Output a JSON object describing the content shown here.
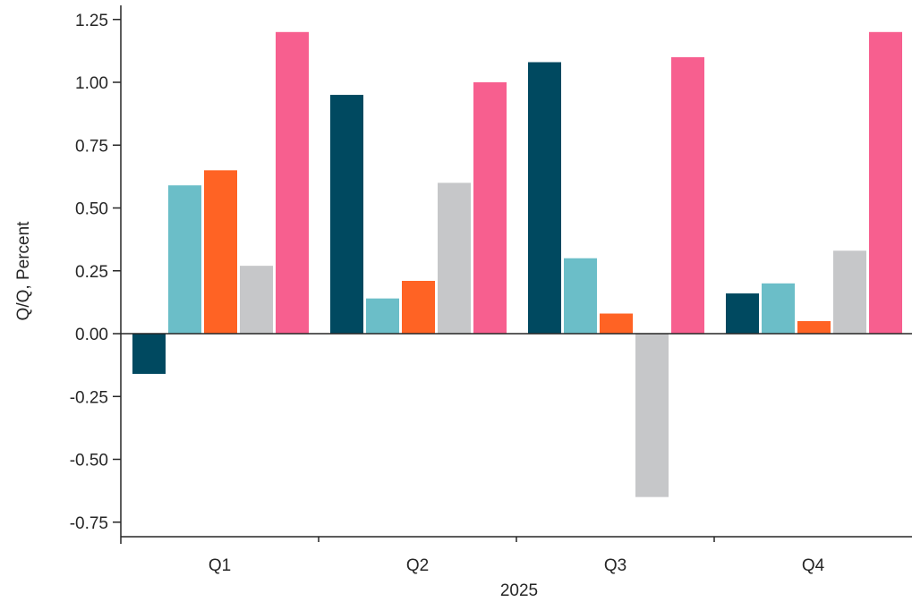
{
  "chart_data": {
    "type": "bar",
    "xlabel": "2025",
    "ylabel": "Q/Q, Percent",
    "categories": [
      "Q1",
      "Q2",
      "Q3",
      "Q4"
    ],
    "ylim": [
      -0.8,
      1.3
    ],
    "yticks": [
      1.25,
      1.0,
      0.75,
      0.5,
      0.25,
      0.0,
      -0.25,
      -0.5,
      -0.75
    ],
    "ytick_labels": [
      "1.25",
      "1.00",
      "0.75",
      "0.50",
      "0.25",
      "0.00",
      "-0.25",
      "-0.50",
      "-0.75"
    ],
    "grid": false,
    "legend": "none",
    "series": [
      {
        "color": "#004960",
        "values": [
          -0.16,
          0.95,
          1.08,
          0.16
        ]
      },
      {
        "color": "#6BBEC8",
        "values": [
          0.59,
          0.14,
          0.3,
          0.2
        ]
      },
      {
        "color": "#FF6324",
        "values": [
          0.65,
          0.21,
          0.08,
          0.05
        ]
      },
      {
        "color": "#C6C7C9",
        "values": [
          0.27,
          0.6,
          -0.65,
          0.33
        ]
      },
      {
        "color": "#F75F8F",
        "values": [
          1.2,
          1.0,
          1.1,
          1.2
        ]
      }
    ]
  }
}
